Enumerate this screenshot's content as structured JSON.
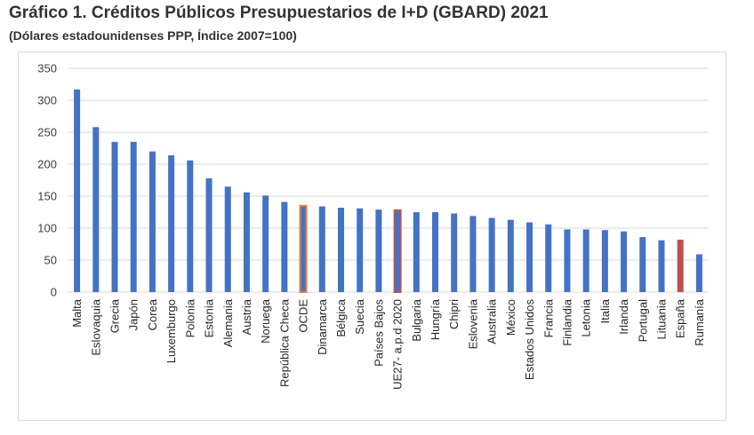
{
  "title": "Gráfico 1. Créditos Públicos Presupuestarios de I+D (GBARD) 2021",
  "subtitle": "(Dólares estadounidenses PPP, Índice 2007=100)",
  "colors": {
    "bar": "#4472C4",
    "highlight_spain": "#C0504D",
    "highlight_oecd_border": "#ED7D31",
    "highlight_eu_border": "#C0504D",
    "grid": "#d9d9d9"
  },
  "chart_data": {
    "type": "bar",
    "title": "Gráfico 1. Créditos Públicos Presupuestarios de I+D (GBARD) 2021",
    "subtitle": "(Dólares estadounidenses PPP, Índice 2007=100)",
    "xlabel": "",
    "ylabel": "",
    "ylim": [
      0,
      350
    ],
    "yticks": [
      0,
      50,
      100,
      150,
      200,
      250,
      300,
      350
    ],
    "grid": true,
    "categories": [
      "Malta",
      "Eslovaquia",
      "Grecia",
      "Japón",
      "Corea",
      "Luxemburgo",
      "Polonia",
      "Estonia",
      "Alemania",
      "Austria",
      "Noruega",
      "República Checa",
      "OCDE",
      "Dinamarca",
      "Bélgica",
      "Suecia",
      "Países Bajos",
      "UE27- a.p.d 2020",
      "Bulgaria",
      "Hungría",
      "Chipri",
      "Eslovenia",
      "Australia",
      "México",
      "Estados Unidos",
      "Francia",
      "Finlandia",
      "Letonia",
      "Italia",
      "Irlanda",
      "Portugal",
      "Lituania",
      "España",
      "Rumanía"
    ],
    "values": [
      317,
      258,
      235,
      235,
      220,
      214,
      206,
      178,
      165,
      156,
      151,
      141,
      135,
      134,
      132,
      131,
      129,
      128,
      125,
      125,
      123,
      119,
      116,
      113,
      109,
      106,
      98,
      98,
      97,
      95,
      86,
      81,
      82,
      59
    ],
    "highlights": {
      "OCDE": "outline-orange",
      "UE27- a.p.d 2020": "outline-red",
      "España": "fill-red"
    }
  }
}
